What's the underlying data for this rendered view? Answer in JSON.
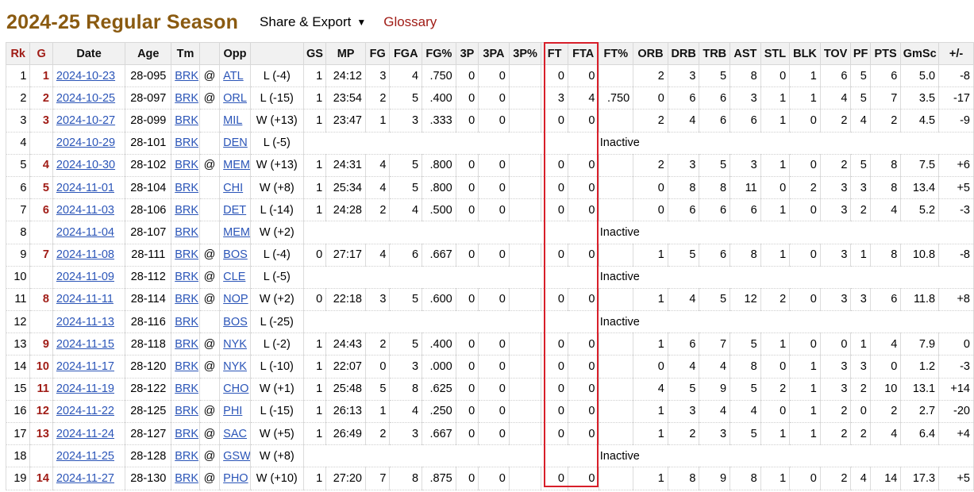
{
  "header": {
    "title": "2024-25 Regular Season",
    "share_export_label": "Share & Export",
    "share_caret": "▼",
    "glossary_label": "Glossary"
  },
  "table": {
    "columns": [
      "Rk",
      "G",
      "Date",
      "Age",
      "Tm",
      "",
      "Opp",
      "",
      "GS",
      "MP",
      "FG",
      "FGA",
      "FG%",
      "3P",
      "3PA",
      "3P%",
      "FT",
      "FTA",
      "FT%",
      "ORB",
      "DRB",
      "TRB",
      "AST",
      "STL",
      "BLK",
      "TOV",
      "PF",
      "PTS",
      "GmSc",
      "+/-"
    ],
    "rows": [
      {
        "rk": "1",
        "g": "1",
        "date": "2024-10-23",
        "age": "28-095",
        "tm": "BRK",
        "loc": "@",
        "opp": "ATL",
        "res": "L (-4)",
        "gs": "1",
        "mp": "24:12",
        "fg": "3",
        "fga": "4",
        "fgp": ".750",
        "tp": "0",
        "tpa": "0",
        "tpp": "",
        "ft": "0",
        "fta": "0",
        "ftp": "",
        "orb": "2",
        "drb": "3",
        "trb": "5",
        "ast": "8",
        "stl": "0",
        "blk": "1",
        "tov": "6",
        "pf": "5",
        "pts": "6",
        "gmsc": "5.0",
        "pm": "-8"
      },
      {
        "rk": "2",
        "g": "2",
        "date": "2024-10-25",
        "age": "28-097",
        "tm": "BRK",
        "loc": "@",
        "opp": "ORL",
        "res": "L (-15)",
        "gs": "1",
        "mp": "23:54",
        "fg": "2",
        "fga": "5",
        "fgp": ".400",
        "tp": "0",
        "tpa": "0",
        "tpp": "",
        "ft": "3",
        "fta": "4",
        "ftp": ".750",
        "orb": "0",
        "drb": "6",
        "trb": "6",
        "ast": "3",
        "stl": "1",
        "blk": "1",
        "tov": "4",
        "pf": "5",
        "pts": "7",
        "gmsc": "3.5",
        "pm": "-17"
      },
      {
        "rk": "3",
        "g": "3",
        "date": "2024-10-27",
        "age": "28-099",
        "tm": "BRK",
        "loc": "",
        "opp": "MIL",
        "res": "W (+13)",
        "gs": "1",
        "mp": "23:47",
        "fg": "1",
        "fga": "3",
        "fgp": ".333",
        "tp": "0",
        "tpa": "0",
        "tpp": "",
        "ft": "0",
        "fta": "0",
        "ftp": "",
        "orb": "2",
        "drb": "4",
        "trb": "6",
        "ast": "6",
        "stl": "1",
        "blk": "0",
        "tov": "2",
        "pf": "4",
        "pts": "2",
        "gmsc": "4.5",
        "pm": "-9"
      },
      {
        "rk": "4",
        "g": "",
        "date": "2024-10-29",
        "age": "28-101",
        "tm": "BRK",
        "loc": "",
        "opp": "DEN",
        "res": "L (-5)",
        "status": "Inactive"
      },
      {
        "rk": "5",
        "g": "4",
        "date": "2024-10-30",
        "age": "28-102",
        "tm": "BRK",
        "loc": "@",
        "opp": "MEM",
        "res": "W (+13)",
        "gs": "1",
        "mp": "24:31",
        "fg": "4",
        "fga": "5",
        "fgp": ".800",
        "tp": "0",
        "tpa": "0",
        "tpp": "",
        "ft": "0",
        "fta": "0",
        "ftp": "",
        "orb": "2",
        "drb": "3",
        "trb": "5",
        "ast": "3",
        "stl": "1",
        "blk": "0",
        "tov": "2",
        "pf": "5",
        "pts": "8",
        "gmsc": "7.5",
        "pm": "+6"
      },
      {
        "rk": "6",
        "g": "5",
        "date": "2024-11-01",
        "age": "28-104",
        "tm": "BRK",
        "loc": "",
        "opp": "CHI",
        "res": "W (+8)",
        "gs": "1",
        "mp": "25:34",
        "fg": "4",
        "fga": "5",
        "fgp": ".800",
        "tp": "0",
        "tpa": "0",
        "tpp": "",
        "ft": "0",
        "fta": "0",
        "ftp": "",
        "orb": "0",
        "drb": "8",
        "trb": "8",
        "ast": "11",
        "stl": "0",
        "blk": "2",
        "tov": "3",
        "pf": "3",
        "pts": "8",
        "gmsc": "13.4",
        "pm": "+5"
      },
      {
        "rk": "7",
        "g": "6",
        "date": "2024-11-03",
        "age": "28-106",
        "tm": "BRK",
        "loc": "",
        "opp": "DET",
        "res": "L (-14)",
        "gs": "1",
        "mp": "24:28",
        "fg": "2",
        "fga": "4",
        "fgp": ".500",
        "tp": "0",
        "tpa": "0",
        "tpp": "",
        "ft": "0",
        "fta": "0",
        "ftp": "",
        "orb": "0",
        "drb": "6",
        "trb": "6",
        "ast": "6",
        "stl": "1",
        "blk": "0",
        "tov": "3",
        "pf": "2",
        "pts": "4",
        "gmsc": "5.2",
        "pm": "-3"
      },
      {
        "rk": "8",
        "g": "",
        "date": "2024-11-04",
        "age": "28-107",
        "tm": "BRK",
        "loc": "",
        "opp": "MEM",
        "res": "W (+2)",
        "status": "Inactive"
      },
      {
        "rk": "9",
        "g": "7",
        "date": "2024-11-08",
        "age": "28-111",
        "tm": "BRK",
        "loc": "@",
        "opp": "BOS",
        "res": "L (-4)",
        "gs": "0",
        "mp": "27:17",
        "fg": "4",
        "fga": "6",
        "fgp": ".667",
        "tp": "0",
        "tpa": "0",
        "tpp": "",
        "ft": "0",
        "fta": "0",
        "ftp": "",
        "orb": "1",
        "drb": "5",
        "trb": "6",
        "ast": "8",
        "stl": "1",
        "blk": "0",
        "tov": "3",
        "pf": "1",
        "pts": "8",
        "gmsc": "10.8",
        "pm": "-8"
      },
      {
        "rk": "10",
        "g": "",
        "date": "2024-11-09",
        "age": "28-112",
        "tm": "BRK",
        "loc": "@",
        "opp": "CLE",
        "res": "L (-5)",
        "status": "Inactive"
      },
      {
        "rk": "11",
        "g": "8",
        "date": "2024-11-11",
        "age": "28-114",
        "tm": "BRK",
        "loc": "@",
        "opp": "NOP",
        "res": "W (+2)",
        "gs": "0",
        "mp": "22:18",
        "fg": "3",
        "fga": "5",
        "fgp": ".600",
        "tp": "0",
        "tpa": "0",
        "tpp": "",
        "ft": "0",
        "fta": "0",
        "ftp": "",
        "orb": "1",
        "drb": "4",
        "trb": "5",
        "ast": "12",
        "stl": "2",
        "blk": "0",
        "tov": "3",
        "pf": "3",
        "pts": "6",
        "gmsc": "11.8",
        "pm": "+8"
      },
      {
        "rk": "12",
        "g": "",
        "date": "2024-11-13",
        "age": "28-116",
        "tm": "BRK",
        "loc": "",
        "opp": "BOS",
        "res": "L (-25)",
        "status": "Inactive"
      },
      {
        "rk": "13",
        "g": "9",
        "date": "2024-11-15",
        "age": "28-118",
        "tm": "BRK",
        "loc": "@",
        "opp": "NYK",
        "res": "L (-2)",
        "gs": "1",
        "mp": "24:43",
        "fg": "2",
        "fga": "5",
        "fgp": ".400",
        "tp": "0",
        "tpa": "0",
        "tpp": "",
        "ft": "0",
        "fta": "0",
        "ftp": "",
        "orb": "1",
        "drb": "6",
        "trb": "7",
        "ast": "5",
        "stl": "1",
        "blk": "0",
        "tov": "0",
        "pf": "1",
        "pts": "4",
        "gmsc": "7.9",
        "pm": "0"
      },
      {
        "rk": "14",
        "g": "10",
        "date": "2024-11-17",
        "age": "28-120",
        "tm": "BRK",
        "loc": "@",
        "opp": "NYK",
        "res": "L (-10)",
        "gs": "1",
        "mp": "22:07",
        "fg": "0",
        "fga": "3",
        "fgp": ".000",
        "tp": "0",
        "tpa": "0",
        "tpp": "",
        "ft": "0",
        "fta": "0",
        "ftp": "",
        "orb": "0",
        "drb": "4",
        "trb": "4",
        "ast": "8",
        "stl": "0",
        "blk": "1",
        "tov": "3",
        "pf": "3",
        "pts": "0",
        "gmsc": "1.2",
        "pm": "-3"
      },
      {
        "rk": "15",
        "g": "11",
        "date": "2024-11-19",
        "age": "28-122",
        "tm": "BRK",
        "loc": "",
        "opp": "CHO",
        "res": "W (+1)",
        "gs": "1",
        "mp": "25:48",
        "fg": "5",
        "fga": "8",
        "fgp": ".625",
        "tp": "0",
        "tpa": "0",
        "tpp": "",
        "ft": "0",
        "fta": "0",
        "ftp": "",
        "orb": "4",
        "drb": "5",
        "trb": "9",
        "ast": "5",
        "stl": "2",
        "blk": "1",
        "tov": "3",
        "pf": "2",
        "pts": "10",
        "gmsc": "13.1",
        "pm": "+14"
      },
      {
        "rk": "16",
        "g": "12",
        "date": "2024-11-22",
        "age": "28-125",
        "tm": "BRK",
        "loc": "@",
        "opp": "PHI",
        "res": "L (-15)",
        "gs": "1",
        "mp": "26:13",
        "fg": "1",
        "fga": "4",
        "fgp": ".250",
        "tp": "0",
        "tpa": "0",
        "tpp": "",
        "ft": "0",
        "fta": "0",
        "ftp": "",
        "orb": "1",
        "drb": "3",
        "trb": "4",
        "ast": "4",
        "stl": "0",
        "blk": "1",
        "tov": "2",
        "pf": "0",
        "pts": "2",
        "gmsc": "2.7",
        "pm": "-20"
      },
      {
        "rk": "17",
        "g": "13",
        "date": "2024-11-24",
        "age": "28-127",
        "tm": "BRK",
        "loc": "@",
        "opp": "SAC",
        "res": "W (+5)",
        "gs": "1",
        "mp": "26:49",
        "fg": "2",
        "fga": "3",
        "fgp": ".667",
        "tp": "0",
        "tpa": "0",
        "tpp": "",
        "ft": "0",
        "fta": "0",
        "ftp": "",
        "orb": "1",
        "drb": "2",
        "trb": "3",
        "ast": "5",
        "stl": "1",
        "blk": "1",
        "tov": "2",
        "pf": "2",
        "pts": "4",
        "gmsc": "6.4",
        "pm": "+4"
      },
      {
        "rk": "18",
        "g": "",
        "date": "2024-11-25",
        "age": "28-128",
        "tm": "BRK",
        "loc": "@",
        "opp": "GSW",
        "res": "W (+8)",
        "status": "Inactive"
      },
      {
        "rk": "19",
        "g": "14",
        "date": "2024-11-27",
        "age": "28-130",
        "tm": "BRK",
        "loc": "@",
        "opp": "PHO",
        "res": "W (+10)",
        "gs": "1",
        "mp": "27:20",
        "fg": "7",
        "fga": "8",
        "fgp": ".875",
        "tp": "0",
        "tpa": "0",
        "tpp": "",
        "ft": "0",
        "fta": "0",
        "ftp": "",
        "orb": "1",
        "drb": "8",
        "trb": "9",
        "ast": "8",
        "stl": "1",
        "blk": "0",
        "tov": "2",
        "pf": "4",
        "pts": "14",
        "gmsc": "17.3",
        "pm": "+5"
      }
    ]
  },
  "colors": {
    "title": "#8a5a10",
    "accent_red": "#a01c16",
    "link_blue": "#2b55b8",
    "highlight_box": "#d81f2a"
  }
}
